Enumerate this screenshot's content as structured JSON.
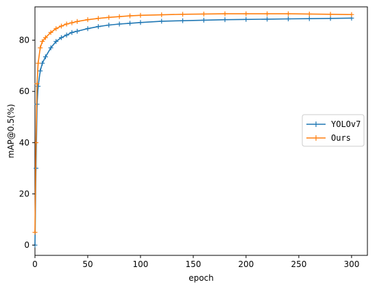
{
  "chart_data": {
    "type": "line",
    "title": "",
    "xlabel": "epoch",
    "ylabel": "mAP@0.5(%)",
    "xlim": [
      0,
      315
    ],
    "ylim": [
      -4,
      93
    ],
    "x_ticks": [
      0,
      50,
      100,
      150,
      200,
      250,
      300
    ],
    "y_ticks": [
      0,
      20,
      40,
      60,
      80
    ],
    "legend_position": "right",
    "grid": false,
    "series": [
      {
        "name": "YOLOv7",
        "color": "#1f77b4",
        "x": [
          0,
          1,
          2,
          3,
          5,
          7,
          10,
          15,
          20,
          25,
          30,
          35,
          40,
          50,
          60,
          70,
          80,
          90,
          100,
          120,
          140,
          160,
          180,
          200,
          220,
          240,
          260,
          280,
          300
        ],
        "y": [
          0,
          30,
          55,
          62,
          68,
          71,
          73.5,
          77,
          79.5,
          81,
          82,
          83,
          83.5,
          84.5,
          85.3,
          85.9,
          86.3,
          86.6,
          86.9,
          87.4,
          87.6,
          87.8,
          88,
          88.1,
          88.2,
          88.3,
          88.4,
          88.5,
          88.6
        ]
      },
      {
        "name": "Ours",
        "color": "#ff7f0e",
        "x": [
          0,
          1,
          2,
          3,
          5,
          7,
          10,
          15,
          20,
          25,
          30,
          35,
          40,
          50,
          60,
          70,
          80,
          90,
          100,
          120,
          140,
          160,
          180,
          200,
          220,
          240,
          260,
          280,
          300
        ],
        "y": [
          5,
          40,
          63,
          71,
          77,
          79.5,
          81,
          83,
          84.5,
          85.5,
          86.3,
          86.8,
          87.3,
          88,
          88.5,
          88.9,
          89.2,
          89.5,
          89.7,
          89.9,
          90.1,
          90.2,
          90.3,
          90.3,
          90.3,
          90.3,
          90.2,
          90.1,
          90
        ]
      }
    ]
  }
}
